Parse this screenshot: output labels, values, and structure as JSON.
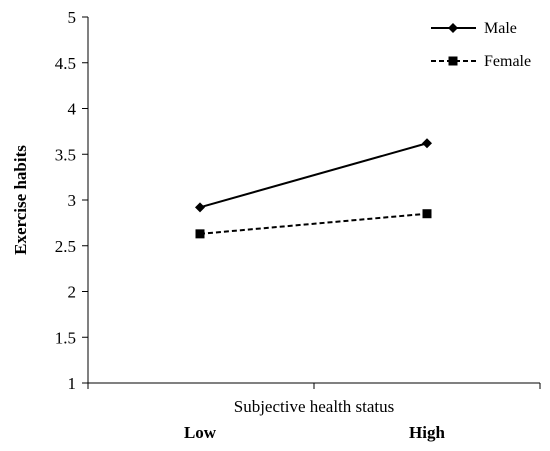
{
  "chart_data": {
    "type": "line",
    "title": "",
    "xlabel": "Subjective health status",
    "ylabel": "Exercise habits",
    "categories": [
      "Low",
      "High"
    ],
    "ylim": [
      1,
      5
    ],
    "yticks": [
      "1",
      "1.5",
      "2",
      "2.5",
      "3",
      "3.5",
      "4",
      "4.5",
      "5"
    ],
    "grid": false,
    "legend": "top-right",
    "series": [
      {
        "name": "Male",
        "values": [
          2.92,
          3.62
        ],
        "line_style": "solid",
        "marker": "diamond",
        "color": "#000000"
      },
      {
        "name": "Female",
        "values": [
          2.63,
          2.85
        ],
        "line_style": "dashed",
        "marker": "square",
        "color": "#000000"
      }
    ]
  }
}
